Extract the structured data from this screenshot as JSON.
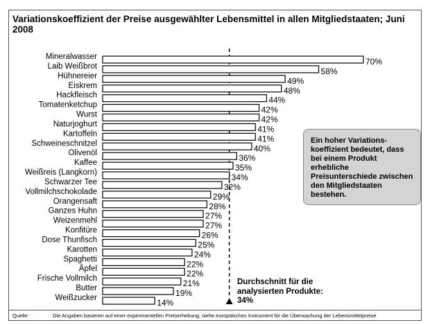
{
  "chart_data": {
    "type": "bar",
    "orientation": "horizontal",
    "title": "Variationskoeffizient der Preise ausgewählter Lebensmittel in allen Mitgliedstaaten; Juni 2008",
    "categories": [
      "Mineralwasser",
      "Laib Weißbrot",
      "Hühnereier",
      "Eiskrem",
      "Hackfleisch",
      "Tomatenketchup",
      "Wurst",
      "Naturjoghurt",
      "Kartoffeln",
      "Schweineschnitzel",
      "Olivenöl",
      "Kaffee",
      "Weißreis (Langkorn)",
      "Schwarzer Tee",
      "Vollmilchschokolade",
      "Orangensaft",
      "Ganzes Huhn",
      "Weizenmehl",
      "Konfitüre",
      "Dose Thunfisch",
      "Karotten",
      "Spaghetti",
      "Äpfel",
      "Frische Vollmilch",
      "Butter",
      "Weißzucker"
    ],
    "values": [
      70,
      58,
      49,
      48,
      44,
      42,
      42,
      41,
      41,
      40,
      36,
      35,
      34,
      32,
      29,
      28,
      27,
      27,
      26,
      25,
      24,
      22,
      22,
      21,
      19,
      14
    ],
    "value_labels": [
      "70%",
      "58%",
      "49%",
      "48%",
      "44%",
      "42%",
      "42%",
      "41%",
      "41%",
      "40%",
      "36%",
      "35%",
      "34%",
      "32%",
      "29%",
      "28%",
      "27%",
      "27%",
      "26%",
      "25%",
      "24%",
      "22%",
      "22%",
      "21%",
      "19%",
      "14%"
    ],
    "unit": "%",
    "average": 34,
    "xlim": [
      0,
      70
    ],
    "grid": false,
    "bar_fill": "#ffffff",
    "bar_stroke": "#000000"
  },
  "annotation_note": "Ein hoher Variations-koeffizient bedeutet, dass bei einem Produkt erhebliche Preisunterschiede zwischen den Mitgliedstaaten bestehen.",
  "average_label": "Durchschnitt für die analysierten Produkte: 34%",
  "source_label": "Quelle:",
  "source_text": "Die Angaben basieren auf einer experimentellen Preiserhebung; siehe europäisches Instrument für die Überwachung der Lebensmittelpreise"
}
